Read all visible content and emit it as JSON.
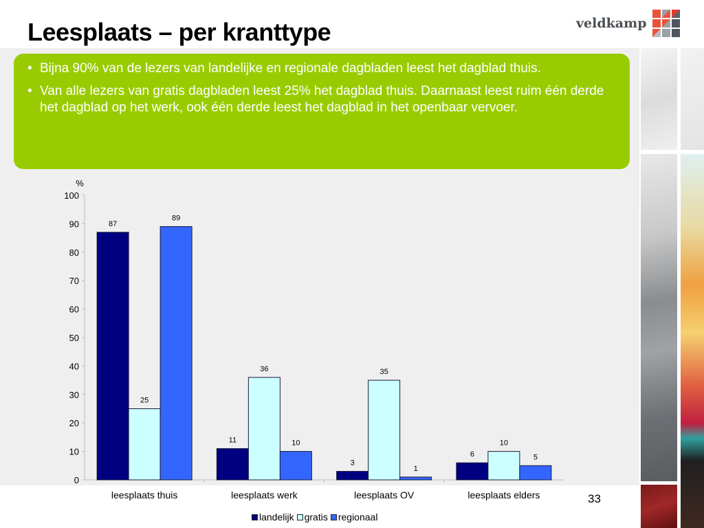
{
  "title": "Leesplaats – per kranttype",
  "logo": {
    "text": "veldkamp"
  },
  "bullets": [
    "Bijna 90% van de lezers van landelijke en regionale dagbladen leest het dagblad thuis.",
    "Van alle lezers van gratis dagbladen leest 25% het dagblad thuis. Daarnaast leest ruim één derde het dagblad op het werk, ook één derde leest het dagblad in het openbaar vervoer."
  ],
  "page_number": "33",
  "chart_data": {
    "type": "bar",
    "ylabel": "%",
    "ylim": [
      0,
      100
    ],
    "yticks": [
      0,
      10,
      20,
      30,
      40,
      50,
      60,
      70,
      80,
      90,
      100
    ],
    "categories": [
      "leesplaats thuis",
      "leesplaats werk",
      "leesplaats OV",
      "leesplaats elders"
    ],
    "series": [
      {
        "name": "landelijk",
        "color": "#000080",
        "values": [
          87,
          11,
          3,
          6
        ]
      },
      {
        "name": "gratis",
        "color": "#ccffff",
        "values": [
          25,
          36,
          35,
          10
        ]
      },
      {
        "name": "regionaal",
        "color": "#3366ff",
        "values": [
          89,
          10,
          1,
          5
        ]
      }
    ],
    "legend_position": "bottom"
  }
}
